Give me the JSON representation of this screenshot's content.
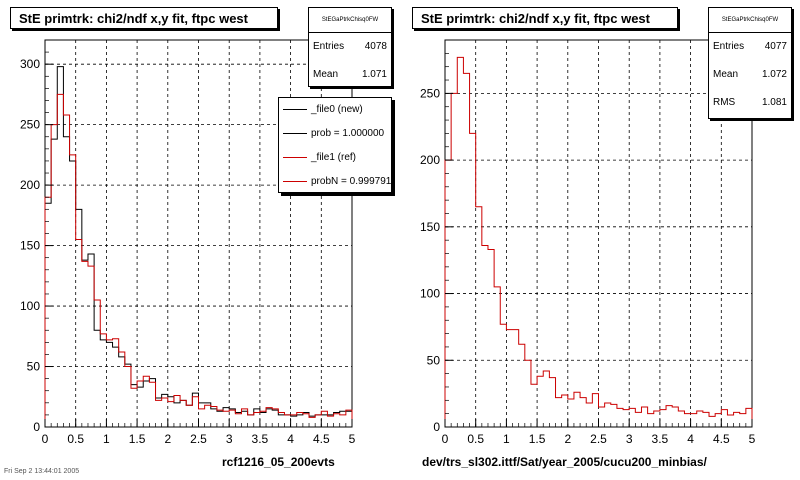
{
  "panels": [
    {
      "title": "StE primtrk: chi2/ndf x,y fit, ftpc west",
      "stats": {
        "name": "StEGaPtrkChisq0FW",
        "rows": [
          {
            "key": "Entries",
            "value": "4078"
          },
          {
            "key": "Mean",
            "value": "1.071"
          }
        ]
      },
      "legend": [
        {
          "label": "_file0 (new)",
          "color": "#000000"
        },
        {
          "label": "prob = 1.000000",
          "color": "#000000"
        },
        {
          "label": "_file1 (ref)",
          "color": "#cc0000"
        },
        {
          "label": "probN = 0.999791",
          "color": "#cc0000"
        }
      ],
      "footer": "rcf1216_05_200evts"
    },
    {
      "title": "StE primtrk: chi2/ndf x,y fit, ftpc west",
      "stats": {
        "name": "StEGaPtrkChisq0FW",
        "rows": [
          {
            "key": "Entries",
            "value": "4077"
          },
          {
            "key": "Mean",
            "value": "1.072"
          },
          {
            "key": "RMS",
            "value": "1.081"
          }
        ]
      },
      "legend": [],
      "footer": "dev/trs_sl302.ittf/Sat/year_2005/cucu200_minbias/"
    }
  ],
  "corner_text": "Fri Sep  2 13:44:01 2005",
  "colors": {
    "file0": "#000000",
    "file1": "#cc0000",
    "grid": "#000000"
  },
  "chart_data": [
    {
      "type": "histogram",
      "title": "StE primtrk: chi2/ndf x,y fit, ftpc west",
      "xlim": [
        0,
        5
      ],
      "ylim": [
        0,
        320
      ],
      "xticks": [
        0,
        0.5,
        1,
        1.5,
        2,
        2.5,
        3,
        3.5,
        4,
        4.5,
        5
      ],
      "xtick_labels": [
        "0",
        "0.5",
        "1",
        "1.5",
        "2",
        "2.5",
        "3",
        "3.5",
        "4",
        "4.5",
        "5"
      ],
      "yticks": [
        0,
        50,
        100,
        150,
        200,
        250,
        300
      ],
      "ytick_labels": [
        "0",
        "50",
        "100",
        "150",
        "200",
        "250",
        "300"
      ],
      "grid": true,
      "bin_width": 0.1,
      "series": [
        {
          "name": "_file0 (new)",
          "color": "#000000",
          "values": [
            185,
            238,
            298,
            240,
            220,
            180,
            138,
            143,
            80,
            72,
            70,
            66,
            58,
            52,
            35,
            33,
            38,
            40,
            24,
            27,
            25,
            20,
            22,
            18,
            28,
            20,
            20,
            15,
            13,
            16,
            15,
            12,
            13,
            10,
            15,
            12,
            15,
            14,
            10,
            10,
            9,
            10,
            12,
            9,
            10,
            10,
            10,
            12,
            13,
            13
          ]
        },
        {
          "name": "_file1 (ref)",
          "color": "#cc0000",
          "values": [
            190,
            250,
            275,
            258,
            225,
            155,
            137,
            133,
            105,
            77,
            72,
            73,
            62,
            50,
            32,
            38,
            42,
            37,
            22,
            24,
            21,
            26,
            22,
            18,
            25,
            15,
            18,
            17,
            14,
            13,
            14,
            11,
            15,
            10,
            12,
            13,
            16,
            15,
            12,
            10,
            10,
            12,
            11,
            8,
            10,
            13,
            9,
            11,
            10,
            14
          ]
        }
      ]
    },
    {
      "type": "histogram",
      "title": "StE primtrk: chi2/ndf x,y fit, ftpc west",
      "xlim": [
        0,
        5
      ],
      "ylim": [
        0,
        290
      ],
      "xticks": [
        0,
        0.5,
        1,
        1.5,
        2,
        2.5,
        3,
        3.5,
        4,
        4.5,
        5
      ],
      "xtick_labels": [
        "0",
        "0.5",
        "1",
        "1.5",
        "2",
        "2.5",
        "3",
        "3.5",
        "4",
        "4.5",
        "5"
      ],
      "yticks": [
        0,
        50,
        100,
        150,
        200,
        250
      ],
      "ytick_labels": [
        "0",
        "50",
        "100",
        "150",
        "200",
        "250"
      ],
      "grid": true,
      "bin_width": 0.1,
      "series": [
        {
          "name": "_file1 (ref)",
          "color": "#cc0000",
          "values": [
            200,
            250,
            277,
            265,
            220,
            165,
            136,
            133,
            105,
            77,
            73,
            73,
            62,
            50,
            32,
            38,
            42,
            37,
            22,
            24,
            21,
            26,
            22,
            18,
            25,
            15,
            18,
            17,
            14,
            13,
            14,
            11,
            15,
            10,
            12,
            13,
            16,
            15,
            12,
            10,
            10,
            12,
            11,
            8,
            10,
            13,
            9,
            11,
            10,
            14
          ]
        }
      ]
    }
  ]
}
